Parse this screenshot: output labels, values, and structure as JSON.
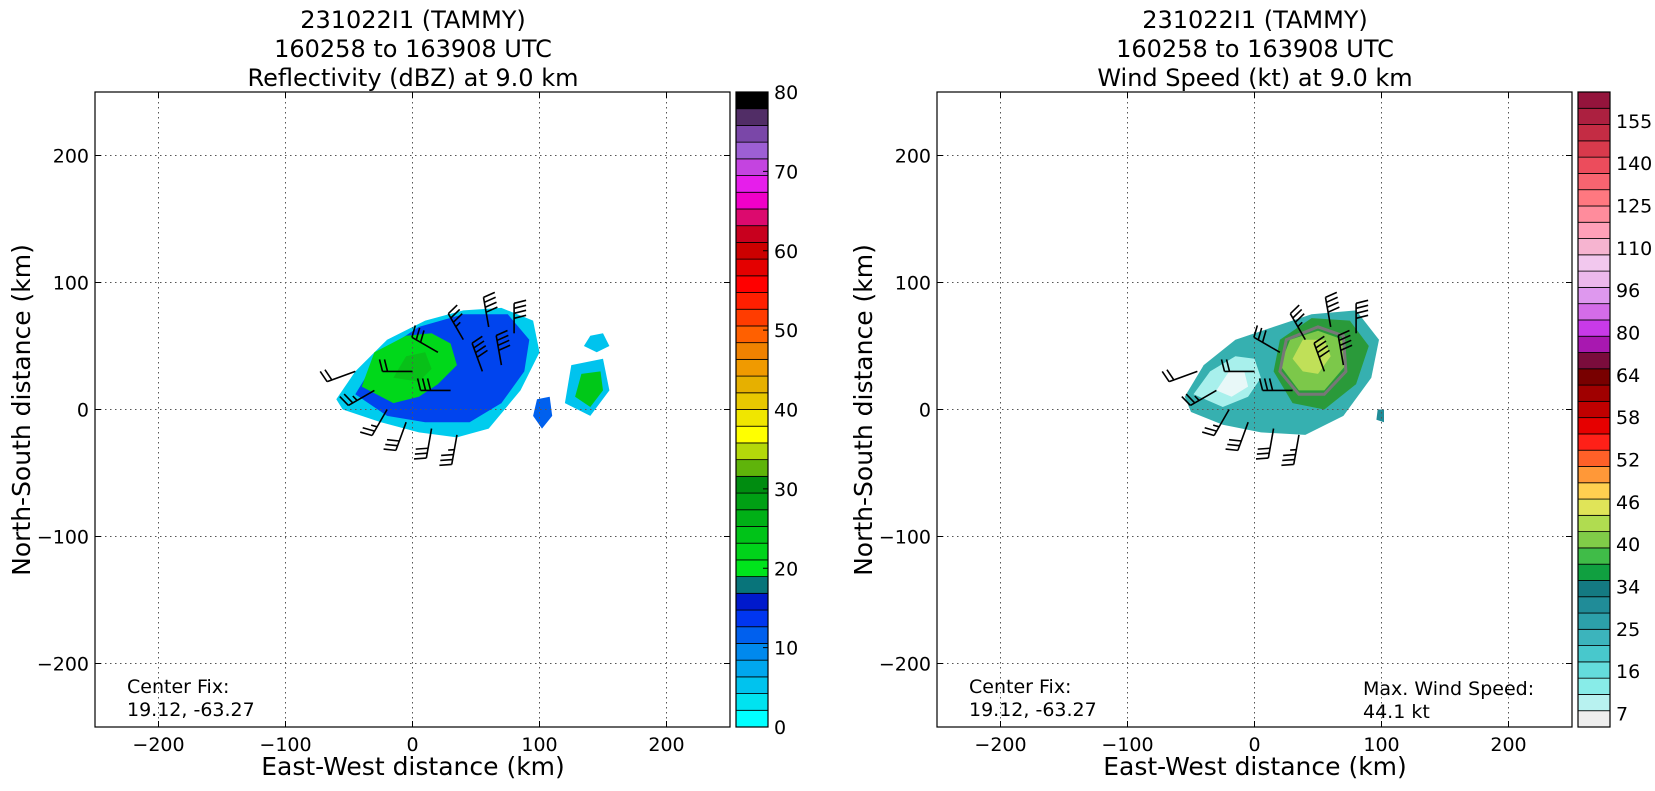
{
  "chart_data": [
    {
      "type": "heatmap",
      "title": [
        "231022I1 (TAMMY)",
        "160258 to 163908 UTC",
        "Reflectivity (dBZ) at 9.0 km"
      ],
      "xlabel": "East-West distance (km)",
      "ylabel": "North-South distance (km)",
      "xlim": [
        -250,
        250
      ],
      "ylim": [
        -250,
        250
      ],
      "xticks": [
        -200,
        -100,
        0,
        100,
        200
      ],
      "yticks": [
        -200,
        -100,
        0,
        100,
        200
      ],
      "grid": true,
      "annotation": [
        "Center Fix:",
        "19.12, -63.27"
      ],
      "colorbar": {
        "min": 0,
        "max": 80,
        "step": 2.5,
        "ticks": [
          0,
          10,
          20,
          30,
          40,
          50,
          60,
          70,
          80
        ],
        "colors": [
          "#00ffff",
          "#00e3f0",
          "#00c3ee",
          "#00a7ee",
          "#0089ee",
          "#0060ee",
          "#0036f0",
          "#0019cc",
          "#08747a",
          "#00e41c",
          "#00d31a",
          "#00c318",
          "#00b016",
          "#00a014",
          "#008c10",
          "#5fb40a",
          "#b4d80a",
          "#ffff00",
          "#f0e600",
          "#e8c800",
          "#e6b000",
          "#f09a00",
          "#f08200",
          "#ff6000",
          "#ff3c00",
          "#ff1f00",
          "#ff0000",
          "#e40000",
          "#cc0000",
          "#c8001e",
          "#dc0a6e",
          "#f000c8",
          "#e61eeb",
          "#c444e0",
          "#9d5fd4",
          "#7a47a8",
          "#512d66",
          "#000000"
        ]
      },
      "echo_regions": [
        {
          "level": "low",
          "color": "#00ccee",
          "points": [
            [
              -60,
              8
            ],
            [
              -45,
              30
            ],
            [
              -20,
              55
            ],
            [
              10,
              70
            ],
            [
              40,
              78
            ],
            [
              70,
              80
            ],
            [
              95,
              70
            ],
            [
              100,
              45
            ],
            [
              85,
              15
            ],
            [
              60,
              -15
            ],
            [
              35,
              -22
            ],
            [
              5,
              -18
            ],
            [
              -25,
              -10
            ],
            [
              -55,
              0
            ]
          ]
        },
        {
          "level": "moderate",
          "color": "#0044ee",
          "points": [
            [
              -45,
              12
            ],
            [
              -25,
              45
            ],
            [
              5,
              65
            ],
            [
              40,
              75
            ],
            [
              75,
              75
            ],
            [
              92,
              55
            ],
            [
              88,
              30
            ],
            [
              70,
              5
            ],
            [
              45,
              -10
            ],
            [
              10,
              -10
            ],
            [
              -20,
              -5
            ]
          ]
        },
        {
          "level": "green",
          "color": "#00d81a",
          "points": [
            [
              -40,
              18
            ],
            [
              -30,
              45
            ],
            [
              -5,
              58
            ],
            [
              15,
              60
            ],
            [
              30,
              52
            ],
            [
              35,
              35
            ],
            [
              20,
              20
            ],
            [
              5,
              10
            ],
            [
              -15,
              5
            ]
          ]
        },
        {
          "level": "green",
          "color": "#08c018",
          "points": [
            [
              -15,
              25
            ],
            [
              -5,
              42
            ],
            [
              10,
              45
            ],
            [
              15,
              32
            ],
            [
              5,
              22
            ]
          ]
        },
        {
          "level": "low",
          "color": "#00c3ee",
          "points": [
            [
              120,
              5
            ],
            [
              125,
              35
            ],
            [
              150,
              40
            ],
            [
              155,
              15
            ],
            [
              140,
              -5
            ]
          ]
        },
        {
          "level": "green",
          "color": "#00c818",
          "points": [
            [
              128,
              10
            ],
            [
              133,
              28
            ],
            [
              148,
              30
            ],
            [
              150,
              15
            ],
            [
              140,
              2
            ]
          ]
        },
        {
          "level": "moderate",
          "color": "#0060ee",
          "points": [
            [
              95,
              -5
            ],
            [
              98,
              8
            ],
            [
              108,
              10
            ],
            [
              110,
              -5
            ],
            [
              102,
              -15
            ]
          ]
        },
        {
          "level": "low",
          "color": "#00c3ee",
          "points": [
            [
              135,
              50
            ],
            [
              140,
              58
            ],
            [
              150,
              60
            ],
            [
              155,
              50
            ],
            [
              145,
              45
            ]
          ]
        }
      ],
      "barbs": [
        {
          "x": -45,
          "y": 30,
          "dir": 250,
          "speed": 20
        },
        {
          "x": -30,
          "y": 15,
          "dir": 240,
          "speed": 25
        },
        {
          "x": -20,
          "y": 0,
          "dir": 210,
          "speed": 25
        },
        {
          "x": -5,
          "y": -10,
          "dir": 200,
          "speed": 30
        },
        {
          "x": 15,
          "y": -15,
          "dir": 190,
          "speed": 30
        },
        {
          "x": 35,
          "y": -20,
          "dir": 190,
          "speed": 35
        },
        {
          "x": 0,
          "y": 30,
          "dir": 270,
          "speed": 20
        },
        {
          "x": 20,
          "y": 45,
          "dir": 300,
          "speed": 30
        },
        {
          "x": 40,
          "y": 55,
          "dir": 330,
          "speed": 35
        },
        {
          "x": 60,
          "y": 65,
          "dir": 350,
          "speed": 40
        },
        {
          "x": 80,
          "y": 60,
          "dir": 0,
          "speed": 40
        },
        {
          "x": 55,
          "y": 30,
          "dir": 340,
          "speed": 40
        },
        {
          "x": 30,
          "y": 15,
          "dir": 270,
          "speed": 30
        },
        {
          "x": 70,
          "y": 35,
          "dir": 350,
          "speed": 40
        }
      ]
    },
    {
      "type": "heatmap",
      "title": [
        "231022I1 (TAMMY)",
        "160258 to 163908 UTC",
        "Wind Speed (kt) at 9.0 km"
      ],
      "xlabel": "East-West distance (km)",
      "ylabel": "North-South distance (km)",
      "xlim": [
        -250,
        250
      ],
      "ylim": [
        -250,
        250
      ],
      "xticks": [
        -200,
        -100,
        0,
        100,
        200
      ],
      "yticks": [
        -200,
        -100,
        0,
        100,
        200
      ],
      "grid": true,
      "annotation": [
        "Center Fix:",
        "19.12, -63.27"
      ],
      "max_wind": [
        "Max. Wind Speed:",
        "44.1 kt"
      ],
      "colorbar": {
        "labels": [
          "7",
          "16",
          "25",
          "34",
          "40",
          "46",
          "52",
          "58",
          "64",
          "80",
          "96",
          "110",
          "125",
          "140",
          "155"
        ],
        "colors": [
          "#eeeeee",
          "#b8f2f0",
          "#88ece8",
          "#64dcdc",
          "#48c8cc",
          "#3cb4bc",
          "#2ca0aa",
          "#208c98",
          "#147a82",
          "#10a040",
          "#40bc48",
          "#80cc48",
          "#b0dc50",
          "#e0e458",
          "#ffd050",
          "#ff9838",
          "#ff6028",
          "#ff2018",
          "#e60000",
          "#c00000",
          "#a00000",
          "#780000",
          "#7a0c3c",
          "#a818b0",
          "#c83ae8",
          "#d46ce8",
          "#de98ee",
          "#ecb8ec",
          "#f2c8ee",
          "#f6b4d0",
          "#ffa0b8",
          "#ff8c9c",
          "#ff7880",
          "#f86470",
          "#ec4c5c",
          "#d83a4c",
          "#c42c44",
          "#ac2040",
          "#94143c"
        ]
      },
      "wind_regions": [
        {
          "color": "#36b0b0",
          "points": [
            [
              -55,
              10
            ],
            [
              -40,
              35
            ],
            [
              -15,
              55
            ],
            [
              15,
              65
            ],
            [
              45,
              75
            ],
            [
              80,
              78
            ],
            [
              98,
              55
            ],
            [
              92,
              25
            ],
            [
              70,
              -5
            ],
            [
              40,
              -20
            ],
            [
              5,
              -18
            ],
            [
              -25,
              -12
            ],
            [
              -50,
              -2
            ]
          ]
        },
        {
          "color": "#a8f0ec",
          "points": [
            [
              -48,
              12
            ],
            [
              -35,
              30
            ],
            [
              -15,
              42
            ],
            [
              0,
              40
            ],
            [
              5,
              25
            ],
            [
              -5,
              10
            ],
            [
              -25,
              2
            ]
          ]
        },
        {
          "color": "#e8f8f8",
          "points": [
            [
              -30,
              15
            ],
            [
              -20,
              30
            ],
            [
              -8,
              30
            ],
            [
              -5,
              18
            ],
            [
              -18,
              10
            ]
          ]
        },
        {
          "color": "#2a9a3a",
          "points": [
            [
              15,
              30
            ],
            [
              20,
              55
            ],
            [
              45,
              72
            ],
            [
              75,
              70
            ],
            [
              90,
              50
            ],
            [
              80,
              20
            ],
            [
              55,
              0
            ],
            [
              30,
              5
            ]
          ]
        },
        {
          "color": "#7cc84a",
          "points": [
            [
              20,
              35
            ],
            [
              28,
              55
            ],
            [
              50,
              62
            ],
            [
              70,
              55
            ],
            [
              72,
              35
            ],
            [
              55,
              15
            ],
            [
              35,
              15
            ]
          ]
        },
        {
          "color": "#c0e058",
          "points": [
            [
              30,
              40
            ],
            [
              38,
              55
            ],
            [
              55,
              55
            ],
            [
              60,
              42
            ],
            [
              50,
              28
            ],
            [
              38,
              30
            ]
          ]
        },
        {
          "color": "#208c98",
          "points": [
            [
              96,
              -8
            ],
            [
              97,
              0
            ],
            [
              102,
              0
            ],
            [
              102,
              -10
            ]
          ]
        }
      ],
      "contours": [
        {
          "color": "#777777",
          "points": [
            [
              20,
              30
            ],
            [
              25,
              55
            ],
            [
              50,
              65
            ],
            [
              70,
              58
            ],
            [
              72,
              30
            ],
            [
              55,
              12
            ],
            [
              35,
              12
            ]
          ]
        }
      ],
      "barbs": [
        {
          "x": -45,
          "y": 30,
          "dir": 250,
          "speed": 20
        },
        {
          "x": -30,
          "y": 15,
          "dir": 240,
          "speed": 25
        },
        {
          "x": -20,
          "y": 0,
          "dir": 210,
          "speed": 25
        },
        {
          "x": -5,
          "y": -10,
          "dir": 200,
          "speed": 30
        },
        {
          "x": 15,
          "y": -15,
          "dir": 190,
          "speed": 30
        },
        {
          "x": 35,
          "y": -20,
          "dir": 190,
          "speed": 35
        },
        {
          "x": 0,
          "y": 30,
          "dir": 270,
          "speed": 20
        },
        {
          "x": 20,
          "y": 45,
          "dir": 300,
          "speed": 30
        },
        {
          "x": 40,
          "y": 55,
          "dir": 330,
          "speed": 35
        },
        {
          "x": 60,
          "y": 65,
          "dir": 350,
          "speed": 40
        },
        {
          "x": 80,
          "y": 60,
          "dir": 0,
          "speed": 40
        },
        {
          "x": 55,
          "y": 30,
          "dir": 340,
          "speed": 40
        },
        {
          "x": 30,
          "y": 15,
          "dir": 270,
          "speed": 30
        },
        {
          "x": 70,
          "y": 35,
          "dir": 350,
          "speed": 40
        }
      ]
    }
  ]
}
